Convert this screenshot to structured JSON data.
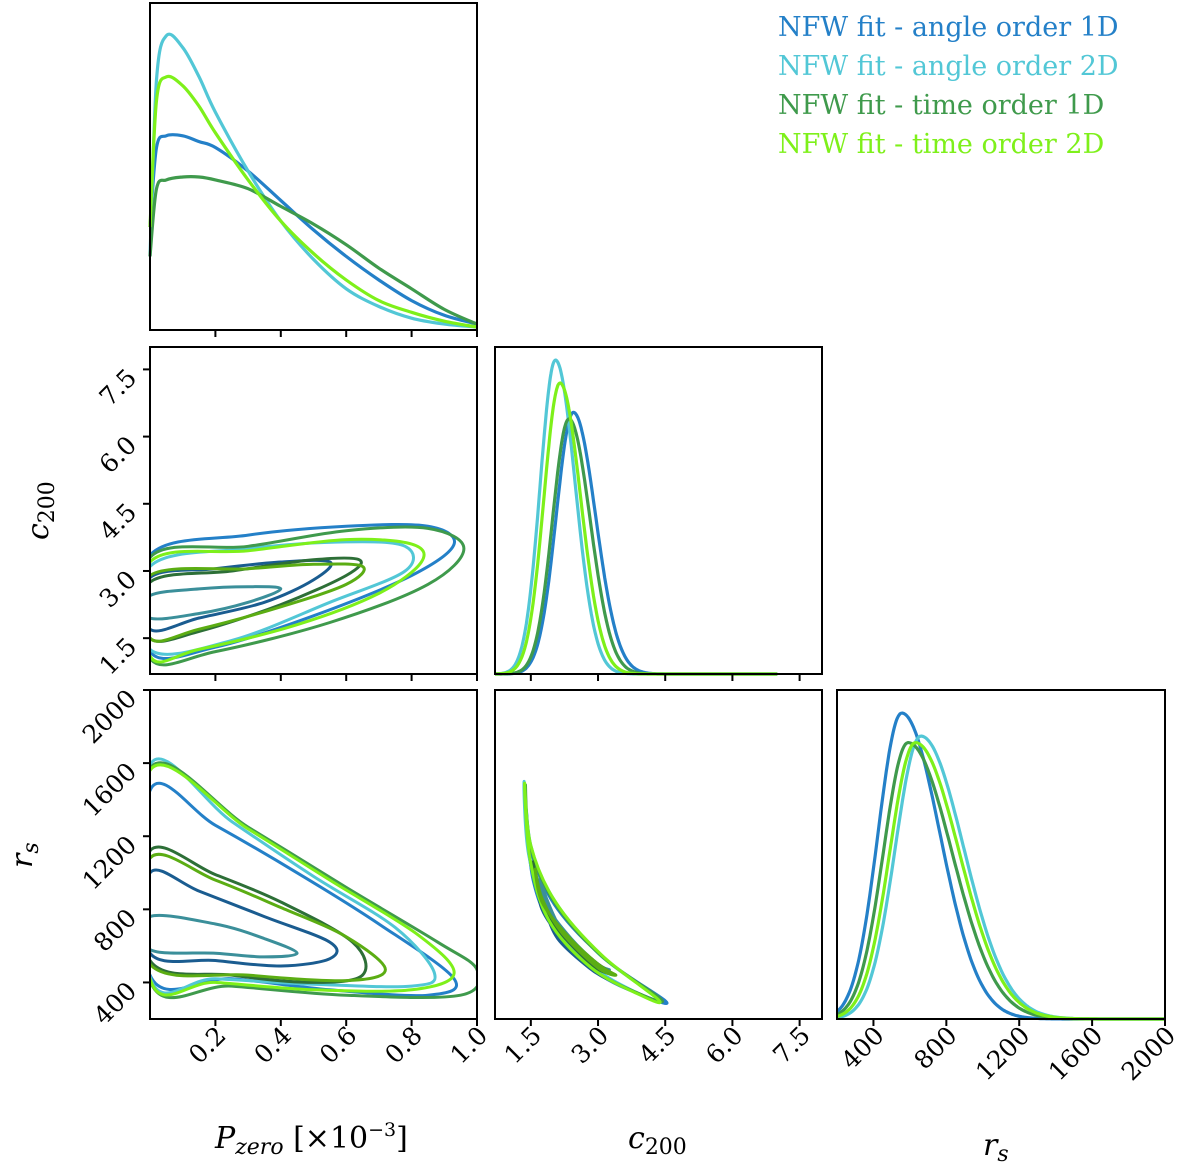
{
  "chart_data": {
    "type": "corner",
    "series": [
      {
        "name": "NFW fit - angle order 1D",
        "color": "#2480c8"
      },
      {
        "name": "NFW fit - angle order 2D",
        "color": "#52c7d6"
      },
      {
        "name": "NFW fit - time order 1D",
        "color": "#3f9a4c"
      },
      {
        "name": "NFW fit - time order 2D",
        "color": "#7ef01a"
      }
    ],
    "parameters": [
      {
        "name": "P_zero",
        "label_main": "P",
        "label_sub": "zero",
        "label_suffix": " [×10",
        "label_sup": "−3",
        "label_end": "]",
        "range": [
          0.0,
          1.0
        ],
        "ticks": [
          "0.2",
          "0.4",
          "0.6",
          "0.8",
          "1.0"
        ]
      },
      {
        "name": "c200",
        "label_main": "c",
        "label_sub": "200",
        "range": [
          0.7,
          8.0
        ],
        "ticks": [
          "1.5",
          "3.0",
          "4.5",
          "6.0",
          "7.5"
        ]
      },
      {
        "name": "r_s",
        "label_main": "r",
        "label_sub": "s",
        "range": [
          200,
          2000
        ],
        "ticks": [
          "400",
          "800",
          "1200",
          "1600",
          "2000"
        ]
      }
    ],
    "marginals": {
      "P_zero": {
        "x": [
          0.0,
          0.02,
          0.05,
          0.1,
          0.15,
          0.2,
          0.3,
          0.4,
          0.5,
          0.6,
          0.7,
          0.8,
          0.9,
          1.0
        ],
        "series_density": [
          [
            0.35,
            0.62,
            0.66,
            0.66,
            0.64,
            0.62,
            0.54,
            0.44,
            0.34,
            0.25,
            0.17,
            0.1,
            0.05,
            0.02
          ],
          [
            0.25,
            0.85,
            1.0,
            0.96,
            0.86,
            0.74,
            0.54,
            0.37,
            0.24,
            0.14,
            0.08,
            0.04,
            0.02,
            0.01
          ],
          [
            0.25,
            0.48,
            0.51,
            0.52,
            0.52,
            0.51,
            0.48,
            0.42,
            0.36,
            0.29,
            0.21,
            0.14,
            0.07,
            0.02
          ],
          [
            0.35,
            0.78,
            0.86,
            0.83,
            0.76,
            0.67,
            0.51,
            0.37,
            0.26,
            0.17,
            0.1,
            0.06,
            0.03,
            0.01
          ]
        ]
      },
      "c200": {
        "peaks": [
          2.45,
          2.05,
          2.35,
          2.15
        ],
        "widths": [
          0.45,
          0.4,
          0.43,
          0.42
        ],
        "heights": [
          0.8,
          0.96,
          0.78,
          0.89
        ]
      },
      "r_s": {
        "peaks": [
          555,
          660,
          590,
          630
        ],
        "widths_left": [
          130,
          140,
          135,
          140
        ],
        "widths_right": [
          210,
          235,
          240,
          240
        ],
        "heights": [
          0.93,
          0.86,
          0.84,
          0.84
        ]
      }
    },
    "contours": {
      "P_zero_vs_c200": [
        {
          "series": 0,
          "inner": [
            [
              0.0,
              2.85
            ],
            [
              0.2,
              3.05
            ],
            [
              0.4,
              3.2
            ],
            [
              0.55,
              3.2
            ],
            [
              0.5,
              2.8
            ],
            [
              0.35,
              2.3
            ],
            [
              0.15,
              1.95
            ],
            [
              0.0,
              1.7
            ]
          ],
          "outer": [
            [
              0.0,
              3.35
            ],
            [
              0.3,
              3.8
            ],
            [
              0.6,
              4.0
            ],
            [
              0.85,
              4.0
            ],
            [
              0.93,
              3.6
            ],
            [
              0.8,
              2.9
            ],
            [
              0.5,
              2.0
            ],
            [
              0.2,
              1.3
            ],
            [
              0.0,
              1.2
            ]
          ]
        },
        {
          "series": 1,
          "inner": [
            [
              0.0,
              2.45
            ],
            [
              0.15,
              2.6
            ],
            [
              0.3,
              2.65
            ],
            [
              0.4,
              2.6
            ],
            [
              0.3,
              2.3
            ],
            [
              0.15,
              2.05
            ],
            [
              0.0,
              1.95
            ]
          ],
          "outer": [
            [
              0.0,
              3.1
            ],
            [
              0.3,
              3.5
            ],
            [
              0.6,
              3.65
            ],
            [
              0.78,
              3.55
            ],
            [
              0.78,
              3.0
            ],
            [
              0.55,
              2.3
            ],
            [
              0.25,
              1.45
            ],
            [
              0.0,
              1.25
            ]
          ]
        },
        {
          "series": 2,
          "inner": [
            [
              0.0,
              2.75
            ],
            [
              0.25,
              3.0
            ],
            [
              0.5,
              3.25
            ],
            [
              0.64,
              3.25
            ],
            [
              0.6,
              2.9
            ],
            [
              0.4,
              2.25
            ],
            [
              0.15,
              1.65
            ],
            [
              0.0,
              1.5
            ]
          ],
          "outer": [
            [
              0.0,
              3.3
            ],
            [
              0.3,
              3.55
            ],
            [
              0.6,
              3.9
            ],
            [
              0.85,
              3.95
            ],
            [
              0.96,
              3.5
            ],
            [
              0.85,
              2.7
            ],
            [
              0.55,
              1.85
            ],
            [
              0.2,
              1.2
            ],
            [
              0.0,
              1.05
            ]
          ]
        },
        {
          "series": 3,
          "inner": [
            [
              0.0,
              2.9
            ],
            [
              0.3,
              3.05
            ],
            [
              0.5,
              3.15
            ],
            [
              0.65,
              3.1
            ],
            [
              0.6,
              2.7
            ],
            [
              0.4,
              2.2
            ],
            [
              0.15,
              1.7
            ],
            [
              0.0,
              1.5
            ]
          ],
          "outer": [
            [
              0.0,
              3.2
            ],
            [
              0.3,
              3.45
            ],
            [
              0.6,
              3.7
            ],
            [
              0.8,
              3.6
            ],
            [
              0.83,
              3.2
            ],
            [
              0.7,
              2.5
            ],
            [
              0.45,
              1.8
            ],
            [
              0.15,
              1.25
            ],
            [
              0.0,
              1.1
            ]
          ]
        }
      ],
      "P_zero_vs_r_s": [
        {
          "series": 0,
          "inner": [
            [
              0.0,
              1000
            ],
            [
              0.15,
              900
            ],
            [
              0.35,
              760
            ],
            [
              0.55,
              620
            ],
            [
              0.55,
              530
            ],
            [
              0.4,
              490
            ],
            [
              0.2,
              520
            ],
            [
              0.0,
              560
            ]
          ],
          "outer": [
            [
              0.0,
              1450
            ],
            [
              0.2,
              1260
            ],
            [
              0.45,
              1000
            ],
            [
              0.7,
              720
            ],
            [
              0.93,
              420
            ],
            [
              0.85,
              330
            ],
            [
              0.55,
              360
            ],
            [
              0.25,
              420
            ],
            [
              0.0,
              440
            ]
          ]
        },
        {
          "series": 1,
          "inner": [
            [
              0.0,
              760
            ],
            [
              0.2,
              720
            ],
            [
              0.35,
              640
            ],
            [
              0.45,
              560
            ],
            [
              0.35,
              540
            ],
            [
              0.2,
              560
            ],
            [
              0.0,
              580
            ]
          ],
          "outer": [
            [
              0.0,
              1590
            ],
            [
              0.25,
              1280
            ],
            [
              0.5,
              980
            ],
            [
              0.75,
              700
            ],
            [
              0.87,
              450
            ],
            [
              0.8,
              380
            ],
            [
              0.5,
              390
            ],
            [
              0.2,
              420
            ],
            [
              0.0,
              430
            ]
          ]
        },
        {
          "series": 2,
          "inner": [
            [
              0.0,
              1120
            ],
            [
              0.2,
              990
            ],
            [
              0.4,
              840
            ],
            [
              0.62,
              620
            ],
            [
              0.65,
              440
            ],
            [
              0.5,
              400
            ],
            [
              0.25,
              440
            ],
            [
              0.0,
              520
            ]
          ],
          "outer": [
            [
              0.0,
              1570
            ],
            [
              0.3,
              1250
            ],
            [
              0.6,
              920
            ],
            [
              0.88,
              620
            ],
            [
              1.0,
              470
            ],
            [
              0.95,
              330
            ],
            [
              0.6,
              330
            ],
            [
              0.25,
              380
            ],
            [
              0.0,
              410
            ]
          ]
        },
        {
          "series": 3,
          "inner": [
            [
              0.0,
              1080
            ],
            [
              0.2,
              960
            ],
            [
              0.4,
              810
            ],
            [
              0.6,
              650
            ],
            [
              0.72,
              470
            ],
            [
              0.6,
              410
            ],
            [
              0.3,
              440
            ],
            [
              0.0,
              500
            ]
          ],
          "outer": [
            [
              0.0,
              1560
            ],
            [
              0.3,
              1240
            ],
            [
              0.55,
              960
            ],
            [
              0.82,
              660
            ],
            [
              0.93,
              450
            ],
            [
              0.8,
              360
            ],
            [
              0.5,
              360
            ],
            [
              0.2,
              400
            ],
            [
              0.0,
              420
            ]
          ]
        }
      ],
      "c200_vs_r_s": [
        {
          "series": 0,
          "inner": [
            [
              1.65,
              960
            ],
            [
              1.75,
              800
            ],
            [
              2.2,
              640
            ],
            [
              2.9,
              470
            ],
            [
              3.2,
              420
            ],
            [
              2.8,
              480
            ],
            [
              2.1,
              640
            ],
            [
              1.8,
              820
            ]
          ],
          "outer": [
            [
              1.4,
              1340
            ],
            [
              1.55,
              1080
            ],
            [
              2.1,
              800
            ],
            [
              3.2,
              520
            ],
            [
              4.5,
              300
            ],
            [
              4.1,
              320
            ],
            [
              3.0,
              450
            ],
            [
              2.0,
              700
            ],
            [
              1.55,
              960
            ]
          ]
        },
        {
          "series": 1,
          "inner": [
            [
              1.7,
              980
            ],
            [
              1.85,
              820
            ],
            [
              2.4,
              640
            ],
            [
              3.0,
              500
            ],
            [
              3.25,
              470
            ],
            [
              2.8,
              520
            ],
            [
              2.2,
              680
            ],
            [
              1.85,
              860
            ]
          ],
          "outer": [
            [
              1.35,
              1500
            ],
            [
              1.5,
              1150
            ],
            [
              2.0,
              860
            ],
            [
              3.0,
              560
            ],
            [
              4.3,
              320
            ],
            [
              3.9,
              340
            ],
            [
              2.8,
              500
            ],
            [
              1.9,
              760
            ],
            [
              1.45,
              1100
            ]
          ]
        },
        {
          "series": 2,
          "inner": [
            [
              1.55,
              1060
            ],
            [
              1.7,
              870
            ],
            [
              2.2,
              680
            ],
            [
              2.9,
              520
            ],
            [
              3.3,
              450
            ],
            [
              2.9,
              490
            ],
            [
              2.1,
              690
            ],
            [
              1.7,
              880
            ]
          ],
          "outer": [
            [
              1.38,
              1480
            ],
            [
              1.5,
              1140
            ],
            [
              2.05,
              830
            ],
            [
              3.1,
              540
            ],
            [
              4.4,
              310
            ],
            [
              4.0,
              330
            ],
            [
              2.9,
              470
            ],
            [
              1.95,
              720
            ],
            [
              1.5,
              1050
            ]
          ]
        },
        {
          "series": 3,
          "inner": [
            [
              1.6,
              1020
            ],
            [
              1.75,
              840
            ],
            [
              2.3,
              660
            ],
            [
              3.0,
              500
            ],
            [
              3.4,
              440
            ],
            [
              3.0,
              480
            ],
            [
              2.2,
              670
            ],
            [
              1.75,
              860
            ]
          ],
          "outer": [
            [
              1.36,
              1490
            ],
            [
              1.5,
              1150
            ],
            [
              2.05,
              840
            ],
            [
              3.1,
              545
            ],
            [
              4.35,
              305
            ],
            [
              3.95,
              330
            ],
            [
              2.85,
              480
            ],
            [
              1.9,
              740
            ],
            [
              1.48,
              1080
            ]
          ]
        }
      ]
    }
  }
}
